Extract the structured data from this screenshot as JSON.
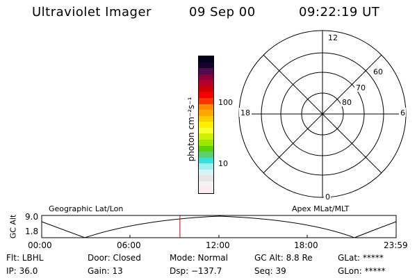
{
  "header": {
    "title": "Ultraviolet Imager",
    "date": "09 Sep 00",
    "time": "09:22:19 UT"
  },
  "colorbar": {
    "unit_label": "photon cm⁻²s⁻¹",
    "tick_labels": [
      "100",
      "10"
    ],
    "colors": [
      "#fde9f0",
      "#f3f3f3",
      "#e6e6e6",
      "#d6f5f5",
      "#9ff0f0",
      "#35e0e0",
      "#5cd16b",
      "#5cd100",
      "#9ee600",
      "#cff000",
      "#f5ff30",
      "#ffef00",
      "#ffcc00",
      "#ffa600",
      "#ff8a00",
      "#ff3300",
      "#f50000",
      "#cc0000",
      "#b3002d",
      "#8a003a",
      "#4d0c4d",
      "#18002c",
      "#02001a"
    ]
  },
  "polar_plot": {
    "mlt_labels": {
      "top": "12",
      "bottom": "0",
      "left": "18",
      "right": "6"
    },
    "lat_labels": [
      "60",
      "70",
      "80"
    ]
  },
  "timeline": {
    "left_title": "Geographic Lat/Lon",
    "right_title": "Apex MLat/MLT",
    "y_axis_label": "GC Alt",
    "y_ticks": [
      "9.0",
      "1.8"
    ],
    "x_ticks": [
      "00:00",
      "06:00",
      "12:00",
      "18:00",
      "23:59"
    ],
    "current_time_fraction": 0.39,
    "marker_color": "#cc0000"
  },
  "info": {
    "row1": [
      "Flt: LBHL",
      "Door: Closed",
      "Mode: Normal",
      "GC Alt: 8.8 Re",
      "GLat: *****"
    ],
    "row2": [
      "IP: 36.0",
      "Gain: 13",
      "Dsp: −137.7",
      "Seq: 39",
      "GLon: *****"
    ]
  }
}
